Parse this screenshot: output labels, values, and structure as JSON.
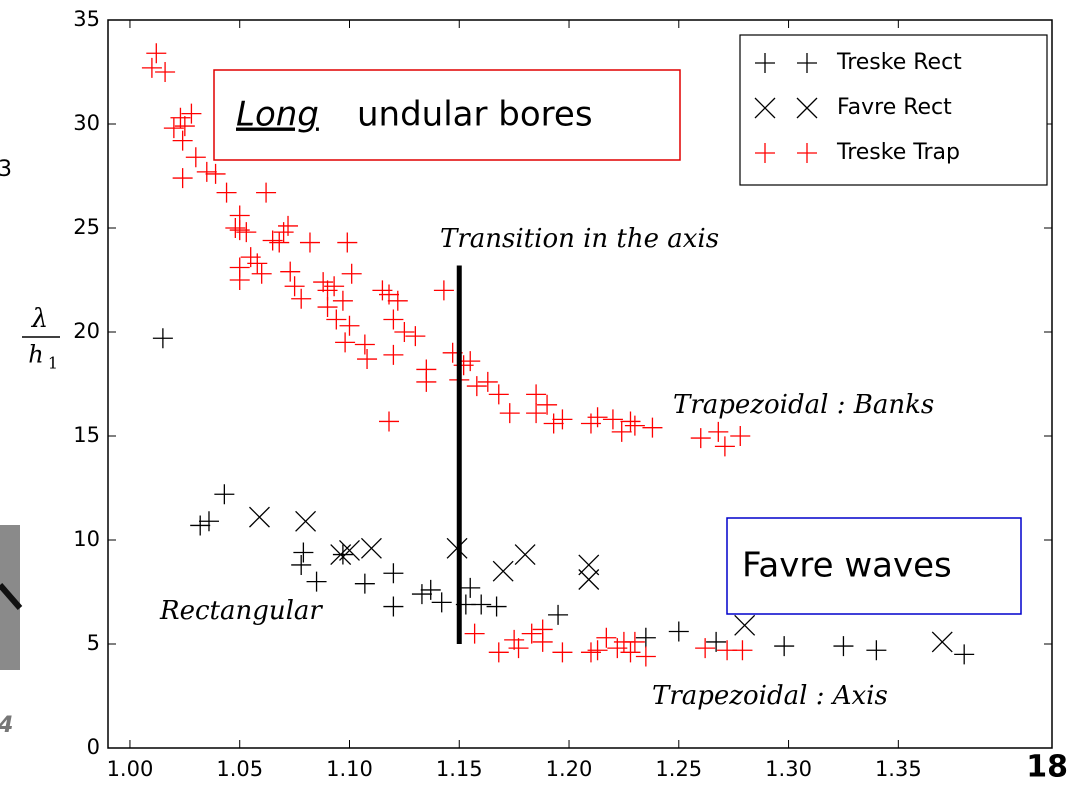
{
  "chart_data": {
    "type": "scatter",
    "ylabel": {
      "numerator": "λ",
      "denominator": "h",
      "subscript": "1"
    },
    "xlim": [
      0.99,
      1.42
    ],
    "ylim": [
      0,
      35
    ],
    "xticks": [
      {
        "value": 1.0,
        "label": "1.00"
      },
      {
        "value": 1.05,
        "label": "1.05"
      },
      {
        "value": 1.1,
        "label": "1.10"
      },
      {
        "value": 1.15,
        "label": "1.15"
      },
      {
        "value": 1.2,
        "label": "1.20"
      },
      {
        "value": 1.25,
        "label": "1.25"
      },
      {
        "value": 1.3,
        "label": "1.30"
      },
      {
        "value": 1.35,
        "label": "1.35"
      }
    ],
    "yticks": [
      0,
      5,
      10,
      15,
      20,
      25,
      30,
      35
    ],
    "legend": "upper right",
    "series": [
      {
        "name": "Treske Rect",
        "marker": "plus",
        "color": "#000000",
        "x": [
          1.015,
          1.032,
          1.036,
          1.043,
          1.078,
          1.079,
          1.085,
          1.097,
          1.107,
          1.12,
          1.12,
          1.133,
          1.137,
          1.142,
          1.153,
          1.155,
          1.16,
          1.167,
          1.195,
          1.235,
          1.25,
          1.267,
          1.298,
          1.325,
          1.34,
          1.38
        ],
        "values": [
          19.7,
          10.7,
          10.9,
          12.2,
          8.8,
          9.4,
          8.0,
          9.3,
          7.9,
          8.4,
          6.8,
          7.4,
          7.6,
          7.0,
          6.9,
          7.7,
          6.9,
          6.8,
          6.4,
          5.3,
          5.6,
          5.1,
          4.9,
          4.9,
          4.7,
          4.5
        ]
      },
      {
        "name": "Favre Rect",
        "marker": "x",
        "color": "#000000",
        "x": [
          1.059,
          1.08,
          1.096,
          1.1,
          1.11,
          1.149,
          1.17,
          1.18,
          1.209,
          1.209,
          1.28,
          1.37
        ],
        "values": [
          11.1,
          10.9,
          9.3,
          9.5,
          9.6,
          9.6,
          8.5,
          9.3,
          8.8,
          8.1,
          5.9,
          5.1
        ]
      },
      {
        "name": "Treske Trap",
        "marker": "plus",
        "color": "#ff0000",
        "x": [
          1.01,
          1.012,
          1.016,
          1.02,
          1.023,
          1.025,
          1.024,
          1.028,
          1.03,
          1.024,
          1.035,
          1.039,
          1.044,
          1.062,
          1.048,
          1.05,
          1.05,
          1.053,
          1.05,
          1.05,
          1.055,
          1.058,
          1.06,
          1.065,
          1.068,
          1.07,
          1.072,
          1.073,
          1.075,
          1.078,
          1.082,
          1.088,
          1.09,
          1.09,
          1.093,
          1.097,
          1.094,
          1.099,
          1.101,
          1.098,
          1.1,
          1.107,
          1.108,
          1.115,
          1.118,
          1.12,
          1.12,
          1.122,
          1.125,
          1.13,
          1.118,
          1.135,
          1.135,
          1.143,
          1.147,
          1.15,
          1.152,
          1.155,
          1.158,
          1.163,
          1.168,
          1.173,
          1.185,
          1.185,
          1.19,
          1.193,
          1.197,
          1.21,
          1.213,
          1.22,
          1.224,
          1.228,
          1.23,
          1.238,
          1.26,
          1.268,
          1.271,
          1.278,
          1.157,
          1.168,
          1.175,
          1.177,
          1.188,
          1.183,
          1.188,
          1.197,
          1.21,
          1.213,
          1.217,
          1.222,
          1.228,
          1.23,
          1.235,
          1.225,
          1.262,
          1.272,
          1.279
        ],
        "values": [
          32.7,
          33.4,
          32.5,
          29.8,
          30.3,
          29.9,
          29.2,
          30.5,
          28.4,
          27.4,
          27.7,
          27.6,
          26.7,
          26.7,
          25.0,
          25.6,
          24.9,
          24.8,
          23.1,
          22.5,
          23.6,
          23.3,
          22.8,
          24.4,
          24.3,
          24.8,
          25.1,
          22.9,
          22.2,
          21.6,
          24.3,
          22.4,
          22.0,
          21.2,
          22.2,
          21.5,
          20.6,
          24.3,
          22.8,
          19.5,
          20.3,
          19.4,
          18.7,
          22.0,
          21.8,
          20.6,
          18.9,
          21.5,
          20.0,
          19.8,
          15.7,
          18.2,
          17.6,
          22.0,
          19.0,
          17.7,
          18.4,
          18.6,
          17.4,
          17.6,
          17.0,
          16.1,
          16.1,
          17.0,
          16.5,
          15.6,
          15.8,
          15.6,
          15.9,
          15.8,
          15.2,
          15.7,
          15.5,
          15.4,
          14.9,
          15.2,
          14.5,
          15.0,
          5.5,
          4.6,
          5.2,
          4.8,
          5.1,
          5.5,
          5.7,
          4.6,
          4.6,
          4.7,
          5.3,
          4.8,
          4.6,
          5.1,
          4.4,
          5.1,
          4.8,
          4.7,
          4.7
        ]
      }
    ],
    "transition_line": {
      "x": 1.15,
      "y": [
        5,
        23.2
      ]
    },
    "annotations": {
      "transition": "Transition in the axis",
      "banks": "Trapezoidal : Banks",
      "rectangular": "Rectangular",
      "axis": "Trapezoidal : Axis",
      "long_emphasis": "Long",
      "long_rest": "undular bores",
      "favre": "Favre waves"
    }
  },
  "slide": {
    "left_fragment_top": "3",
    "left_fragment_bottom": "4",
    "page_number": "18"
  }
}
